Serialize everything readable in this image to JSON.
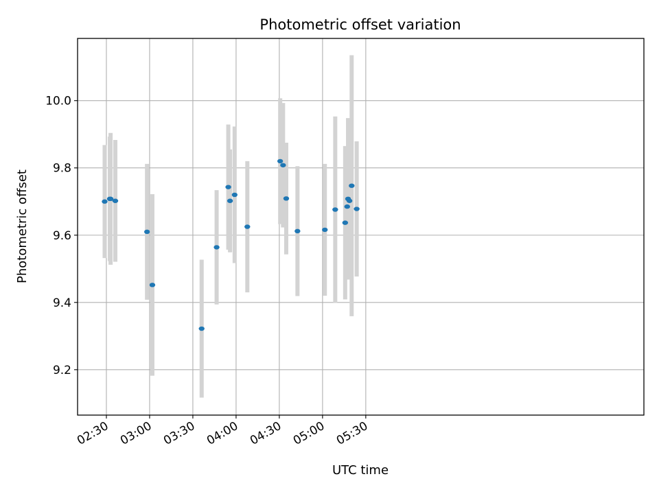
{
  "chart_data": {
    "type": "scatter",
    "title": "Photometric offset variation",
    "xlabel": "UTC time",
    "ylabel": "Photometric offset",
    "xlim_minutes": [
      130,
      523
    ],
    "ylim": [
      9.065,
      10.185
    ],
    "x_ticks": [
      {
        "minutes": 150,
        "label": "02:30"
      },
      {
        "minutes": 180,
        "label": "03:00"
      },
      {
        "minutes": 210,
        "label": "03:30"
      },
      {
        "minutes": 240,
        "label": "04:00"
      },
      {
        "minutes": 270,
        "label": "04:30"
      },
      {
        "minutes": 300,
        "label": "05:00"
      },
      {
        "minutes": 330,
        "label": "05:30"
      }
    ],
    "y_ticks": [
      {
        "value": 9.2,
        "label": "9.2"
      },
      {
        "value": 9.4,
        "label": "9.4"
      },
      {
        "value": 9.6,
        "label": "9.6"
      },
      {
        "value": 9.8,
        "label": "9.8"
      },
      {
        "value": 10.0,
        "label": "10.0"
      }
    ],
    "grid": true,
    "series": [
      {
        "name": "Photometric offset",
        "color": "#1f77b4",
        "errorbar_color": "#d3d3d3",
        "points": [
          {
            "t": 148.8,
            "y": 9.7,
            "err": 0.168
          },
          {
            "t": 152.4,
            "y": 9.708,
            "err": 0.185
          },
          {
            "t": 152.9,
            "y": 9.708,
            "err": 0.196
          },
          {
            "t": 156.2,
            "y": 9.702,
            "err": 0.181
          },
          {
            "t": 178.2,
            "y": 9.61,
            "err": 0.202
          },
          {
            "t": 181.9,
            "y": 9.452,
            "err": 0.27
          },
          {
            "t": 216.1,
            "y": 9.322,
            "err": 0.205
          },
          {
            "t": 226.5,
            "y": 9.564,
            "err": 0.17
          },
          {
            "t": 234.6,
            "y": 9.743,
            "err": 0.186
          },
          {
            "t": 235.8,
            "y": 9.702,
            "err": 0.153
          },
          {
            "t": 239.0,
            "y": 9.72,
            "err": 0.203
          },
          {
            "t": 247.8,
            "y": 9.625,
            "err": 0.195
          },
          {
            "t": 270.6,
            "y": 9.82,
            "err": 0.187
          },
          {
            "t": 272.6,
            "y": 9.808,
            "err": 0.185
          },
          {
            "t": 274.8,
            "y": 9.709,
            "err": 0.166
          },
          {
            "t": 282.6,
            "y": 9.612,
            "err": 0.193
          },
          {
            "t": 301.6,
            "y": 9.616,
            "err": 0.196
          },
          {
            "t": 308.8,
            "y": 9.676,
            "err": 0.277
          },
          {
            "t": 315.7,
            "y": 9.637,
            "err": 0.228
          },
          {
            "t": 317.1,
            "y": 9.685,
            "err": 0.177
          },
          {
            "t": 317.7,
            "y": 9.708,
            "err": 0.24
          },
          {
            "t": 318.7,
            "y": 9.702,
            "err": 0.22
          },
          {
            "t": 320.2,
            "y": 9.747,
            "err": 0.388
          },
          {
            "t": 323.7,
            "y": 9.678,
            "err": 0.201
          }
        ]
      }
    ]
  }
}
